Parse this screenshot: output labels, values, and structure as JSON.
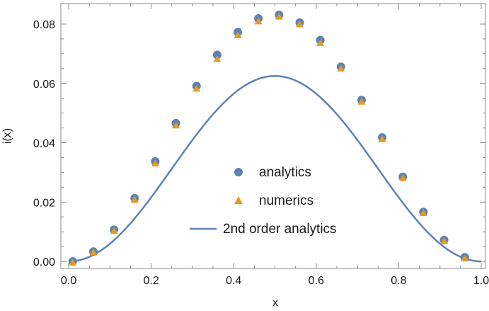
{
  "chart_data": {
    "type": "scatter",
    "xlabel": "x",
    "ylabel": "i(x)",
    "xlim": [
      0.0,
      1.0
    ],
    "ylim": [
      -0.002,
      0.088
    ],
    "x_ticks": [
      0.0,
      0.2,
      0.4,
      0.6,
      0.8,
      1.0
    ],
    "x_tick_labels": [
      "0.0",
      "0.2",
      "0.4",
      "0.6",
      "0.8",
      "1.0"
    ],
    "y_ticks": [
      0.0,
      0.02,
      0.04,
      0.06,
      0.08
    ],
    "y_tick_labels": [
      "0.00",
      "0.02",
      "0.04",
      "0.06",
      "0.08"
    ],
    "grid": false,
    "legend_position": "center",
    "colors": {
      "analytics": "#5e81b5",
      "numerics": "#e19c24",
      "line": "#5e81b5",
      "frame": "#888888"
    },
    "series": [
      {
        "name": "analytics",
        "kind": "points",
        "marker": "circle",
        "x": [
          0.01,
          0.06,
          0.11,
          0.16,
          0.21,
          0.26,
          0.31,
          0.36,
          0.41,
          0.46,
          0.51,
          0.56,
          0.61,
          0.66,
          0.71,
          0.76,
          0.81,
          0.86,
          0.91,
          0.96
        ],
        "y": [
          0.0,
          0.0033,
          0.0107,
          0.0213,
          0.0337,
          0.0466,
          0.0591,
          0.0696,
          0.0773,
          0.0819,
          0.0831,
          0.0805,
          0.0746,
          0.0656,
          0.0544,
          0.0418,
          0.0285,
          0.0167,
          0.0072,
          0.0014
        ]
      },
      {
        "name": "numerics",
        "kind": "points",
        "marker": "triangle",
        "x": [
          0.01,
          0.06,
          0.11,
          0.16,
          0.21,
          0.26,
          0.31,
          0.36,
          0.41,
          0.46,
          0.51,
          0.56,
          0.61,
          0.66,
          0.71,
          0.76,
          0.81,
          0.86,
          0.91,
          0.96
        ],
        "y": [
          -0.0003,
          0.0031,
          0.0104,
          0.0208,
          0.0331,
          0.0459,
          0.0583,
          0.0683,
          0.0763,
          0.081,
          0.0826,
          0.08,
          0.0737,
          0.0651,
          0.0539,
          0.0413,
          0.0283,
          0.0164,
          0.007,
          0.0011
        ]
      },
      {
        "name": "2nd order analytics",
        "kind": "line",
        "x": [
          0.0,
          0.05,
          0.1,
          0.15,
          0.2,
          0.25,
          0.3,
          0.35,
          0.4,
          0.45,
          0.5,
          0.55,
          0.6,
          0.65,
          0.7,
          0.75,
          0.8,
          0.85,
          0.9,
          0.95,
          1.0
        ],
        "y": [
          0.0,
          0.0015,
          0.0059,
          0.0128,
          0.0214,
          0.0309,
          0.0404,
          0.049,
          0.0558,
          0.0603,
          0.0625,
          0.0603,
          0.0558,
          0.049,
          0.0404,
          0.0309,
          0.0214,
          0.0128,
          0.0059,
          0.0015,
          0.0
        ]
      }
    ]
  }
}
